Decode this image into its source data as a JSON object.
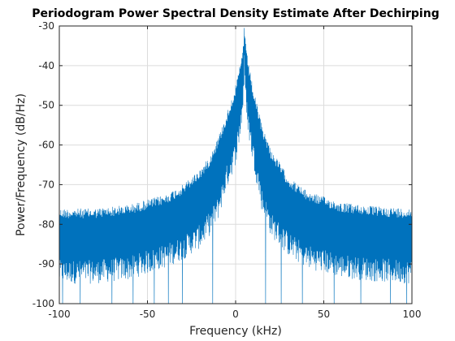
{
  "chart_data": {
    "type": "line",
    "title": "Periodogram Power Spectral Density Estimate After Dechirping",
    "xlabel": "Frequency (kHz)",
    "ylabel": "Power/Frequency (dB/Hz)",
    "xlim": [
      -100,
      100
    ],
    "ylim": [
      -100,
      -30
    ],
    "xticks": [
      -100,
      -50,
      0,
      50,
      100
    ],
    "xtick_labels": [
      "-100",
      "-50",
      "0",
      "50",
      "100"
    ],
    "yticks": [
      -100,
      -90,
      -80,
      -70,
      -60,
      -50,
      -40,
      -30
    ],
    "ytick_labels": [
      "-100",
      "-90",
      "-80",
      "-70",
      "-60",
      "-50",
      "-40",
      "-30"
    ],
    "grid": true,
    "series_color": "#0072BD",
    "grid_color": "#dcdcdc",
    "peak": {
      "x": 5,
      "y": -30.5
    },
    "upper_envelope": {
      "x": [
        -100,
        -80,
        -60,
        -40,
        -30,
        -20,
        -15,
        -10,
        -5,
        0,
        2,
        4,
        5,
        6,
        8,
        10,
        15,
        20,
        30,
        40,
        60,
        80,
        100
      ],
      "y": [
        -76,
        -76,
        -75,
        -72.5,
        -70,
        -66,
        -63,
        -58,
        -52,
        -45,
        -41,
        -36,
        -30.5,
        -36,
        -41,
        -46,
        -55,
        -61,
        -68,
        -71.5,
        -74.5,
        -75.5,
        -76
      ]
    },
    "lower_envelope": {
      "x": [
        -100,
        -80,
        -60,
        -40,
        -30,
        -20,
        -15,
        -10,
        -5,
        0,
        2,
        4,
        5,
        6,
        8,
        10,
        15,
        20,
        30,
        40,
        60,
        80,
        100
      ],
      "y": [
        -92,
        -92,
        -91,
        -88,
        -86,
        -83,
        -80,
        -76,
        -68,
        -62,
        -57,
        -50,
        -40,
        -50,
        -57,
        -62,
        -74,
        -80,
        -85,
        -88,
        -90.5,
        -91.5,
        -92
      ]
    },
    "deep_nulls_x": [
      -98,
      -88,
      -70,
      -58,
      -46,
      -38,
      -30,
      -13,
      17,
      26,
      38,
      56,
      71,
      88,
      97
    ]
  }
}
